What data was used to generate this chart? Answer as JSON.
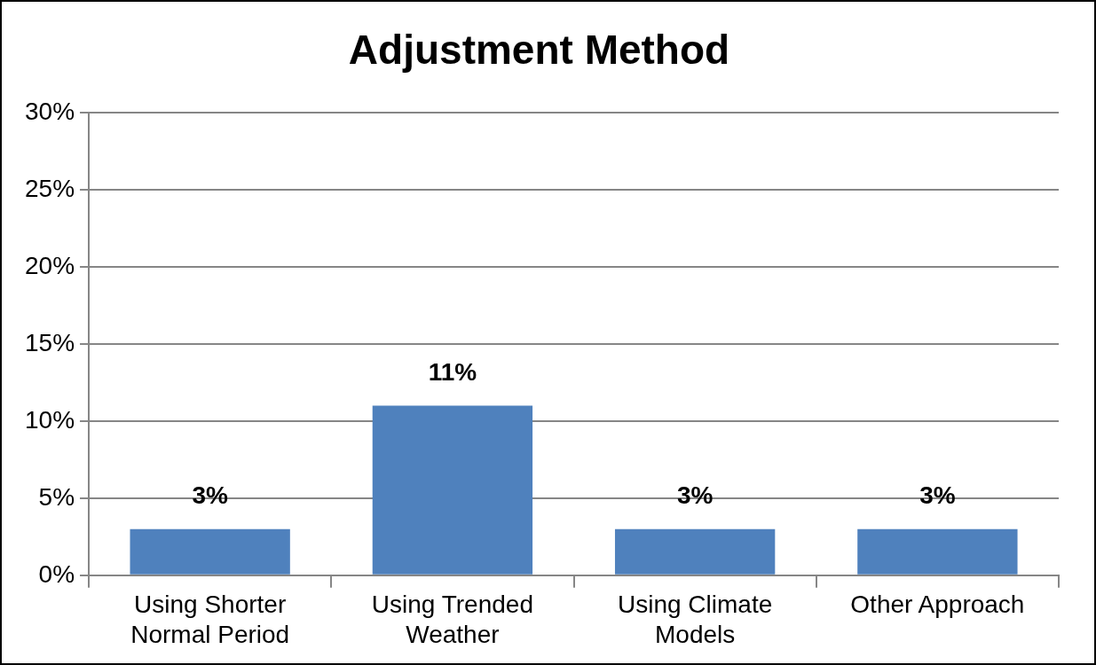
{
  "chart_data": {
    "type": "bar",
    "title": "Adjustment Method",
    "categories": [
      "Using Shorter Normal Period",
      "Using Trended Weather",
      "Using Climate Models",
      "Other Approach"
    ],
    "values": [
      3,
      11,
      3,
      3
    ],
    "color": "#4f81bd",
    "value_labels": [
      "3%",
      "11%",
      "3%",
      "3%"
    ],
    "ylim": [
      0,
      30
    ],
    "yticks": [
      {
        "value": 0,
        "label": "0%"
      },
      {
        "value": 5,
        "label": "5%"
      },
      {
        "value": 10,
        "label": "10%"
      },
      {
        "value": 15,
        "label": "15%"
      },
      {
        "value": 20,
        "label": "20%"
      },
      {
        "value": 25,
        "label": "25%"
      },
      {
        "value": 30,
        "label": "30%"
      }
    ],
    "grid": "y",
    "legend": false
  }
}
